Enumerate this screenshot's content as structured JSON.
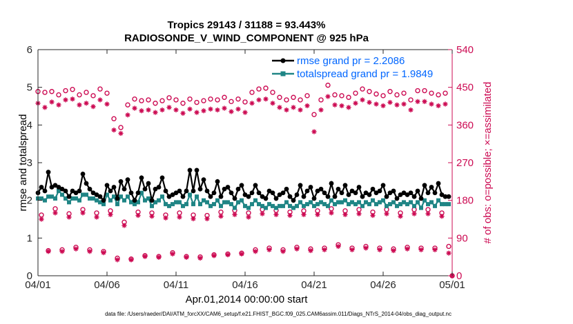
{
  "chart_data": {
    "type": "line",
    "title": "Tropics 29143 / 31188 = 93.443%",
    "subtitle": "RADIOSONDE_V_WIND_COMPONENT @ 925 hPa",
    "xlabel": "Apr.01,2014 00:00:00 start",
    "ylabel": "rmse and totalspread",
    "ylabel_right": "# of obs: o=possible; ×=assimilated",
    "xlim": [
      0,
      30
    ],
    "ylim": [
      0,
      6
    ],
    "ylim_right": [
      0,
      540
    ],
    "x_tick_labels": [
      "04/01",
      "04/06",
      "04/11",
      "04/16",
      "04/21",
      "04/26",
      "05/01"
    ],
    "y_ticks": [
      0,
      1,
      2,
      3,
      4,
      5,
      6
    ],
    "y_ticks_right": [
      0,
      90,
      180,
      270,
      360,
      450,
      540
    ],
    "legend": [
      "rmse grand pr = 2.2086",
      "totalspread grand pr = 1.9849"
    ],
    "legend_location": "top-right",
    "colors": {
      "rmse": "#000000",
      "spread": "#1f8585",
      "obs": "#cc0a52",
      "legend_text": "#0066ff"
    },
    "footer": "data file: /Users/raeder/DAI/ATM_forcXX/CAM6_setup/f.e21.FHIST_BGC.f09_025.CAM6assim.011/Diags_NTrS_2014-04/obs_diag_output.nc",
    "series": [
      {
        "name": "rmse",
        "x": [
          0.0,
          0.25,
          0.5,
          0.75,
          1.0,
          1.25,
          1.5,
          1.75,
          2.0,
          2.25,
          2.5,
          2.75,
          3.0,
          3.25,
          3.5,
          3.75,
          4.0,
          4.25,
          4.5,
          4.75,
          5.0,
          5.25,
          5.5,
          5.75,
          6.0,
          6.25,
          6.5,
          6.75,
          7.0,
          7.25,
          7.5,
          7.75,
          8.0,
          8.25,
          8.5,
          8.75,
          9.0,
          9.25,
          9.5,
          9.75,
          10.0,
          10.25,
          10.5,
          10.75,
          11.0,
          11.25,
          11.5,
          11.75,
          12.0,
          12.25,
          12.5,
          12.75,
          13.0,
          13.25,
          13.5,
          13.75,
          14.0,
          14.25,
          14.5,
          14.75,
          15.0,
          15.25,
          15.5,
          15.75,
          16.0,
          16.25,
          16.5,
          16.75,
          17.0,
          17.25,
          17.5,
          17.75,
          18.0,
          18.25,
          18.5,
          18.75,
          19.0,
          19.25,
          19.5,
          19.75,
          20.0,
          20.25,
          20.5,
          20.75,
          21.0,
          21.25,
          21.5,
          21.75,
          22.0,
          22.25,
          22.5,
          22.75,
          23.0,
          23.25,
          23.5,
          23.75,
          24.0,
          24.25,
          24.5,
          24.75,
          25.0,
          25.25,
          25.5,
          25.75,
          26.0,
          26.25,
          26.5,
          26.75,
          27.0,
          27.25,
          27.5,
          27.75,
          28.0,
          28.25,
          28.5,
          28.75,
          29.0,
          29.25,
          29.5,
          29.75
        ],
        "values": [
          2.2,
          2.35,
          2.25,
          2.75,
          2.35,
          2.4,
          2.35,
          2.3,
          2.25,
          2.1,
          2.25,
          2.2,
          2.25,
          2.7,
          2.45,
          2.3,
          2.2,
          2.15,
          2.1,
          2.0,
          2.4,
          2.25,
          2.35,
          2.05,
          2.5,
          2.3,
          2.55,
          2.2,
          2.0,
          2.2,
          2.6,
          2.3,
          2.45,
          2.0,
          2.3,
          2.35,
          2.6,
          2.25,
          2.1,
          2.15,
          2.2,
          2.25,
          2.1,
          2.25,
          2.8,
          2.25,
          2.8,
          2.3,
          2.55,
          2.25,
          2.1,
          2.2,
          2.5,
          2.1,
          2.3,
          2.35,
          2.2,
          2.05,
          2.3,
          2.4,
          2.15,
          2.1,
          2.2,
          2.4,
          2.2,
          2.1,
          2.05,
          2.25,
          2.2,
          2.05,
          2.15,
          2.2,
          2.3,
          2.1,
          2.0,
          2.15,
          2.4,
          2.1,
          2.25,
          2.35,
          2.05,
          2.25,
          2.3,
          2.2,
          2.1,
          2.45,
          2.1,
          2.3,
          2.2,
          2.4,
          2.15,
          2.25,
          2.2,
          2.35,
          2.1,
          2.2,
          2.15,
          2.3,
          2.2,
          2.25,
          2.4,
          2.1,
          2.2,
          2.25,
          2.05,
          2.15,
          2.2,
          2.15,
          2.2,
          2.1,
          2.25,
          2.05,
          2.4,
          2.2,
          2.35,
          2.2,
          2.45,
          2.15,
          2.1,
          2.1
        ]
      },
      {
        "name": "totalspread",
        "x": [
          0.0,
          0.25,
          0.5,
          0.75,
          1.0,
          1.25,
          1.5,
          1.75,
          2.0,
          2.25,
          2.5,
          2.75,
          3.0,
          3.25,
          3.5,
          3.75,
          4.0,
          4.25,
          4.5,
          4.75,
          5.0,
          5.25,
          5.5,
          5.75,
          6.0,
          6.25,
          6.5,
          6.75,
          7.0,
          7.25,
          7.5,
          7.75,
          8.0,
          8.25,
          8.5,
          8.75,
          9.0,
          9.25,
          9.5,
          9.75,
          10.0,
          10.25,
          10.5,
          10.75,
          11.0,
          11.25,
          11.5,
          11.75,
          12.0,
          12.25,
          12.5,
          12.75,
          13.0,
          13.25,
          13.5,
          13.75,
          14.0,
          14.25,
          14.5,
          14.75,
          15.0,
          15.25,
          15.5,
          15.75,
          16.0,
          16.25,
          16.5,
          16.75,
          17.0,
          17.25,
          17.5,
          17.75,
          18.0,
          18.25,
          18.5,
          18.75,
          19.0,
          19.25,
          19.5,
          19.75,
          20.0,
          20.25,
          20.5,
          20.75,
          21.0,
          21.25,
          21.5,
          21.75,
          22.0,
          22.25,
          22.5,
          22.75,
          23.0,
          23.25,
          23.5,
          23.75,
          24.0,
          24.25,
          24.5,
          24.75,
          25.0,
          25.25,
          25.5,
          25.75,
          26.0,
          26.25,
          26.5,
          26.75,
          27.0,
          27.25,
          27.5,
          27.75,
          28.0,
          28.25,
          28.5,
          28.75,
          29.0,
          29.25,
          29.5,
          29.75
        ],
        "values": [
          2.05,
          2.05,
          2.0,
          2.1,
          2.1,
          2.05,
          2.25,
          2.15,
          2.05,
          1.95,
          2.05,
          2.05,
          2.0,
          2.15,
          2.15,
          2.05,
          2.05,
          2.0,
          1.95,
          1.9,
          2.15,
          2.0,
          2.1,
          1.9,
          2.1,
          2.0,
          2.1,
          1.95,
          1.9,
          1.95,
          2.2,
          2.0,
          2.05,
          1.85,
          1.95,
          2.0,
          2.1,
          1.9,
          1.85,
          1.9,
          1.95,
          1.95,
          1.85,
          1.9,
          2.15,
          1.9,
          2.1,
          1.9,
          2.0,
          1.95,
          1.85,
          1.9,
          2.0,
          1.85,
          1.95,
          1.95,
          1.9,
          1.8,
          1.95,
          2.0,
          1.85,
          1.8,
          1.9,
          2.0,
          1.9,
          1.85,
          1.8,
          1.9,
          1.85,
          1.8,
          1.85,
          1.85,
          1.95,
          1.85,
          1.8,
          1.85,
          1.95,
          1.85,
          1.9,
          1.95,
          1.85,
          1.9,
          1.95,
          1.9,
          1.85,
          2.0,
          1.9,
          1.95,
          1.95,
          2.0,
          1.9,
          1.95,
          1.9,
          1.95,
          1.85,
          1.95,
          1.9,
          2.0,
          1.9,
          1.95,
          2.0,
          1.85,
          1.9,
          1.95,
          1.85,
          1.9,
          1.95,
          1.9,
          1.95,
          1.85,
          1.95,
          1.8,
          2.0,
          1.9,
          1.95,
          1.85,
          2.0,
          1.9,
          1.9,
          1.9
        ]
      },
      {
        "name": "possible",
        "x": [
          0.0,
          0.25,
          0.5,
          0.75,
          1.0,
          1.25,
          1.5,
          1.75,
          2.0,
          2.25,
          2.5,
          2.75,
          3.0,
          3.25,
          3.5,
          3.75,
          4.0,
          4.25,
          4.5,
          4.75,
          5.0,
          5.25,
          5.5,
          5.75,
          6.0,
          6.25,
          6.5,
          6.75,
          7.0,
          7.25,
          7.5,
          7.75,
          8.0,
          8.25,
          8.5,
          8.75,
          9.0,
          9.25,
          9.5,
          9.75,
          10.0,
          10.25,
          10.5,
          10.75,
          11.0,
          11.25,
          11.5,
          11.75,
          12.0,
          12.25,
          12.5,
          12.75,
          13.0,
          13.25,
          13.5,
          13.75,
          14.0,
          14.25,
          14.5,
          14.75,
          15.0,
          15.25,
          15.5,
          15.75,
          16.0,
          16.25,
          16.5,
          16.75,
          17.0,
          17.25,
          17.5,
          17.75,
          18.0,
          18.25,
          18.5,
          18.75,
          19.0,
          19.25,
          19.5,
          19.75,
          20.0,
          20.25,
          20.5,
          20.75,
          21.0,
          21.25,
          21.5,
          21.75,
          22.0,
          22.25,
          22.5,
          22.75,
          23.0,
          23.25,
          23.5,
          23.75,
          24.0,
          24.25,
          24.5,
          24.75,
          25.0,
          25.25,
          25.5,
          25.75,
          26.0,
          26.25,
          26.5,
          26.75,
          27.0,
          27.25,
          27.5,
          27.75,
          28.0,
          28.25,
          28.5,
          28.75,
          29.0,
          29.25,
          29.5,
          29.75,
          30.0
        ],
        "values": [
          440,
          145,
          438,
          60,
          440,
          160,
          432,
          62,
          442,
          148,
          445,
          68,
          432,
          158,
          438,
          62,
          430,
          150,
          446,
          58,
          436,
          155,
          375,
          42,
          354,
          128,
          408,
          40,
          422,
          152,
          418,
          48,
          420,
          150,
          412,
          46,
          418,
          145,
          425,
          55,
          420,
          150,
          412,
          46,
          422,
          145,
          414,
          45,
          418,
          144,
          422,
          50,
          420,
          152,
          426,
          52,
          416,
          156,
          422,
          54,
          415,
          150,
          438,
          62,
          446,
          158,
          448,
          66,
          438,
          156,
          426,
          62,
          420,
          152,
          426,
          68,
          420,
          155,
          430,
          64,
          385,
          155,
          420,
          66,
          455,
          160,
          432,
          74,
          430,
          155,
          426,
          66,
          436,
          158,
          446,
          70,
          440,
          152,
          434,
          66,
          430,
          158,
          440,
          64,
          432,
          150,
          436,
          68,
          420,
          158,
          442,
          66,
          442,
          158,
          436,
          66,
          432,
          150,
          436,
          70,
          0
        ],
        "comment": "values on right axis (# of obs)"
      },
      {
        "name": "assimilated",
        "x": [
          0.0,
          0.25,
          0.5,
          0.75,
          1.0,
          1.25,
          1.5,
          1.75,
          2.0,
          2.25,
          2.5,
          2.75,
          3.0,
          3.25,
          3.5,
          3.75,
          4.0,
          4.25,
          4.5,
          4.75,
          5.0,
          5.25,
          5.5,
          5.75,
          6.0,
          6.25,
          6.5,
          6.75,
          7.0,
          7.25,
          7.5,
          7.75,
          8.0,
          8.25,
          8.5,
          8.75,
          9.0,
          9.25,
          9.5,
          9.75,
          10.0,
          10.25,
          10.5,
          10.75,
          11.0,
          11.25,
          11.5,
          11.75,
          12.0,
          12.25,
          12.5,
          12.75,
          13.0,
          13.25,
          13.5,
          13.75,
          14.0,
          14.25,
          14.5,
          14.75,
          15.0,
          15.25,
          15.5,
          15.75,
          16.0,
          16.25,
          16.5,
          16.75,
          17.0,
          17.25,
          17.5,
          17.75,
          18.0,
          18.25,
          18.5,
          18.75,
          19.0,
          19.25,
          19.5,
          19.75,
          20.0,
          20.25,
          20.5,
          20.75,
          21.0,
          21.25,
          21.5,
          21.75,
          22.0,
          22.25,
          22.5,
          22.75,
          23.0,
          23.25,
          23.5,
          23.75,
          24.0,
          24.25,
          24.5,
          24.75,
          25.0,
          25.25,
          25.5,
          25.75,
          26.0,
          26.25,
          26.5,
          26.75,
          27.0,
          27.25,
          27.5,
          27.75,
          28.0,
          28.25,
          28.5,
          28.75,
          29.0,
          29.25,
          29.5,
          29.75,
          30.0
        ],
        "values": [
          412,
          135,
          402,
          58,
          415,
          150,
          408,
          58,
          420,
          140,
          422,
          64,
          408,
          150,
          412,
          58,
          404,
          140,
          420,
          55,
          410,
          146,
          348,
          38,
          340,
          120,
          384,
          38,
          400,
          144,
          394,
          46,
          396,
          142,
          390,
          44,
          396,
          138,
          402,
          52,
          396,
          140,
          388,
          44,
          398,
          136,
          390,
          42,
          394,
          136,
          398,
          48,
          396,
          142,
          400,
          50,
          392,
          146,
          398,
          52,
          390,
          140,
          412,
          58,
          420,
          148,
          422,
          62,
          412,
          146,
          402,
          58,
          396,
          144,
          402,
          64,
          396,
          146,
          406,
          60,
          344,
          146,
          396,
          62,
          428,
          150,
          408,
          70,
          406,
          146,
          402,
          62,
          412,
          148,
          420,
          66,
          414,
          144,
          410,
          62,
          406,
          148,
          414,
          60,
          408,
          142,
          410,
          64,
          396,
          148,
          416,
          62,
          416,
          148,
          410,
          62,
          406,
          142,
          410,
          54,
          0
        ],
        "comment": "values on right axis (# of obs)"
      }
    ]
  }
}
